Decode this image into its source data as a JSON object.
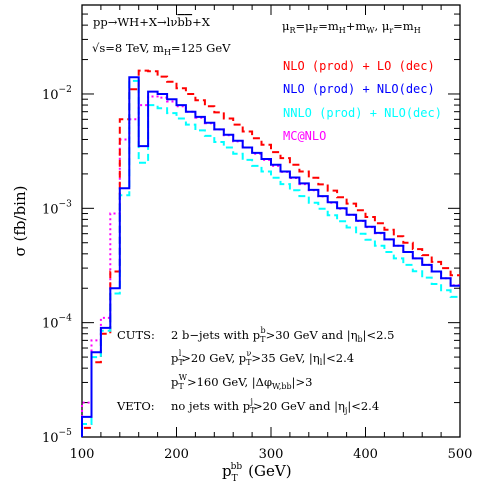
{
  "chart_data": {
    "type": "line",
    "xlabel": "p",
    "xlabel_sub": "T",
    "xlabel_sup": "bb",
    "xlabel_unit": "(GeV)",
    "ylabel": "σ (fb/bin)",
    "xlim": [
      100,
      500
    ],
    "ylim": [
      1e-05,
      0.06
    ],
    "yscale": "log",
    "grid": false,
    "xticks": [
      100,
      200,
      300,
      400,
      500
    ],
    "xtick_labels": [
      "100",
      "200",
      "300",
      "400",
      "500"
    ],
    "yticks": [
      1e-05,
      0.0001,
      0.001,
      0.01
    ],
    "ytick_labels": [
      {
        "base": "10",
        "exp": "−5"
      },
      {
        "base": "10",
        "exp": "−4"
      },
      {
        "base": "10",
        "exp": "−3"
      },
      {
        "base": "10",
        "exp": "−2"
      }
    ],
    "bin_width": 10,
    "bin_edges_start": 100,
    "series": [
      {
        "name": "NLO (prod) + LO (dec)",
        "color": "#ff0000",
        "style": "dashed",
        "values": [
          1.2e-05,
          4.5e-05,
          8e-05,
          0.00028,
          0.006,
          0.011,
          0.016,
          0.0158,
          0.0142,
          0.0128,
          0.0112,
          0.01,
          0.0088,
          0.0078,
          0.0069,
          0.0061,
          0.0054,
          0.0047,
          0.0041,
          0.0036,
          0.0031,
          0.00275,
          0.0024,
          0.0021,
          0.00185,
          0.00162,
          0.00143,
          0.00125,
          0.0011,
          0.00096,
          0.00084,
          0.00074,
          0.00065,
          0.00057,
          0.0005,
          0.00044,
          0.00039,
          0.00034,
          0.0003,
          0.00026
        ]
      },
      {
        "name": "NLO (prod) + NLO(dec)",
        "color": "#0000ff",
        "style": "solid",
        "values": [
          1.5e-05,
          5.5e-05,
          9e-05,
          0.0002,
          0.0015,
          0.014,
          0.0035,
          0.0105,
          0.01,
          0.009,
          0.008,
          0.007,
          0.0063,
          0.0056,
          0.0049,
          0.0044,
          0.0039,
          0.0034,
          0.00305,
          0.0027,
          0.0024,
          0.0021,
          0.00186,
          0.00165,
          0.00145,
          0.00128,
          0.00113,
          0.001,
          0.00088,
          0.00078,
          0.00069,
          0.00061,
          0.000535,
          0.00047,
          0.000415,
          0.000365,
          0.00032,
          0.00028,
          0.000245,
          0.00021
        ]
      },
      {
        "name": "NNLO (prod) + NLO(dec)",
        "color": "#00ffff",
        "style": "dashed",
        "values": [
          1.3e-05,
          5e-05,
          8.5e-05,
          0.00018,
          0.0013,
          0.013,
          0.0025,
          0.008,
          0.0075,
          0.0068,
          0.0061,
          0.0054,
          0.0048,
          0.0043,
          0.0038,
          0.0034,
          0.003,
          0.00265,
          0.00235,
          0.0021,
          0.00185,
          0.00163,
          0.00144,
          0.00128,
          0.00112,
          0.00099,
          0.00087,
          0.00077,
          0.00068,
          0.0006,
          0.00053,
          0.00047,
          0.000415,
          0.000365,
          0.00032,
          0.000282,
          0.000248,
          0.000218,
          0.000192,
          0.000168
        ]
      },
      {
        "name": "MC@NLO",
        "color": "#ff00ff",
        "style": "dotted",
        "values": [
          2e-05,
          7e-05,
          0.00011,
          0.0009,
          0.004,
          0.006,
          0.008,
          0.0095,
          0.0093,
          0.0086,
          0.0078,
          0.007,
          0.0062,
          0.00555,
          0.0049,
          0.00435,
          0.00385,
          0.0034,
          0.003,
          0.00265,
          0.00235,
          0.00208,
          0.00184,
          0.00163,
          0.00144,
          0.00127,
          0.00112,
          0.00099,
          0.000875,
          0.000775,
          0.000685,
          0.000605,
          0.000535,
          0.00047,
          0.000415,
          0.000365,
          0.00032,
          0.00028,
          0.000245,
          0.000212
        ]
      }
    ],
    "process_text": "pp→WH+X→lνbb̄+X",
    "energy_text": "√s=8 TeV,  m_H=125 GeV",
    "scale_text": "μ_R=μ_F=m_H+m_W,   μ_r=m_H",
    "cuts_title": "CUTS:",
    "cuts": [
      "2 b−jets with p_T^b>30 GeV and |η_b|<2.5",
      "p_T^l>20 GeV, p_T^ν>35 GeV, |η_l|<2.4",
      "p_T^W>160 GeV, |Δφ_W,bb|>3"
    ],
    "veto_title": "VETO:",
    "veto": "no jets with p_T^j>20 GeV and |η_j|<2.4"
  }
}
